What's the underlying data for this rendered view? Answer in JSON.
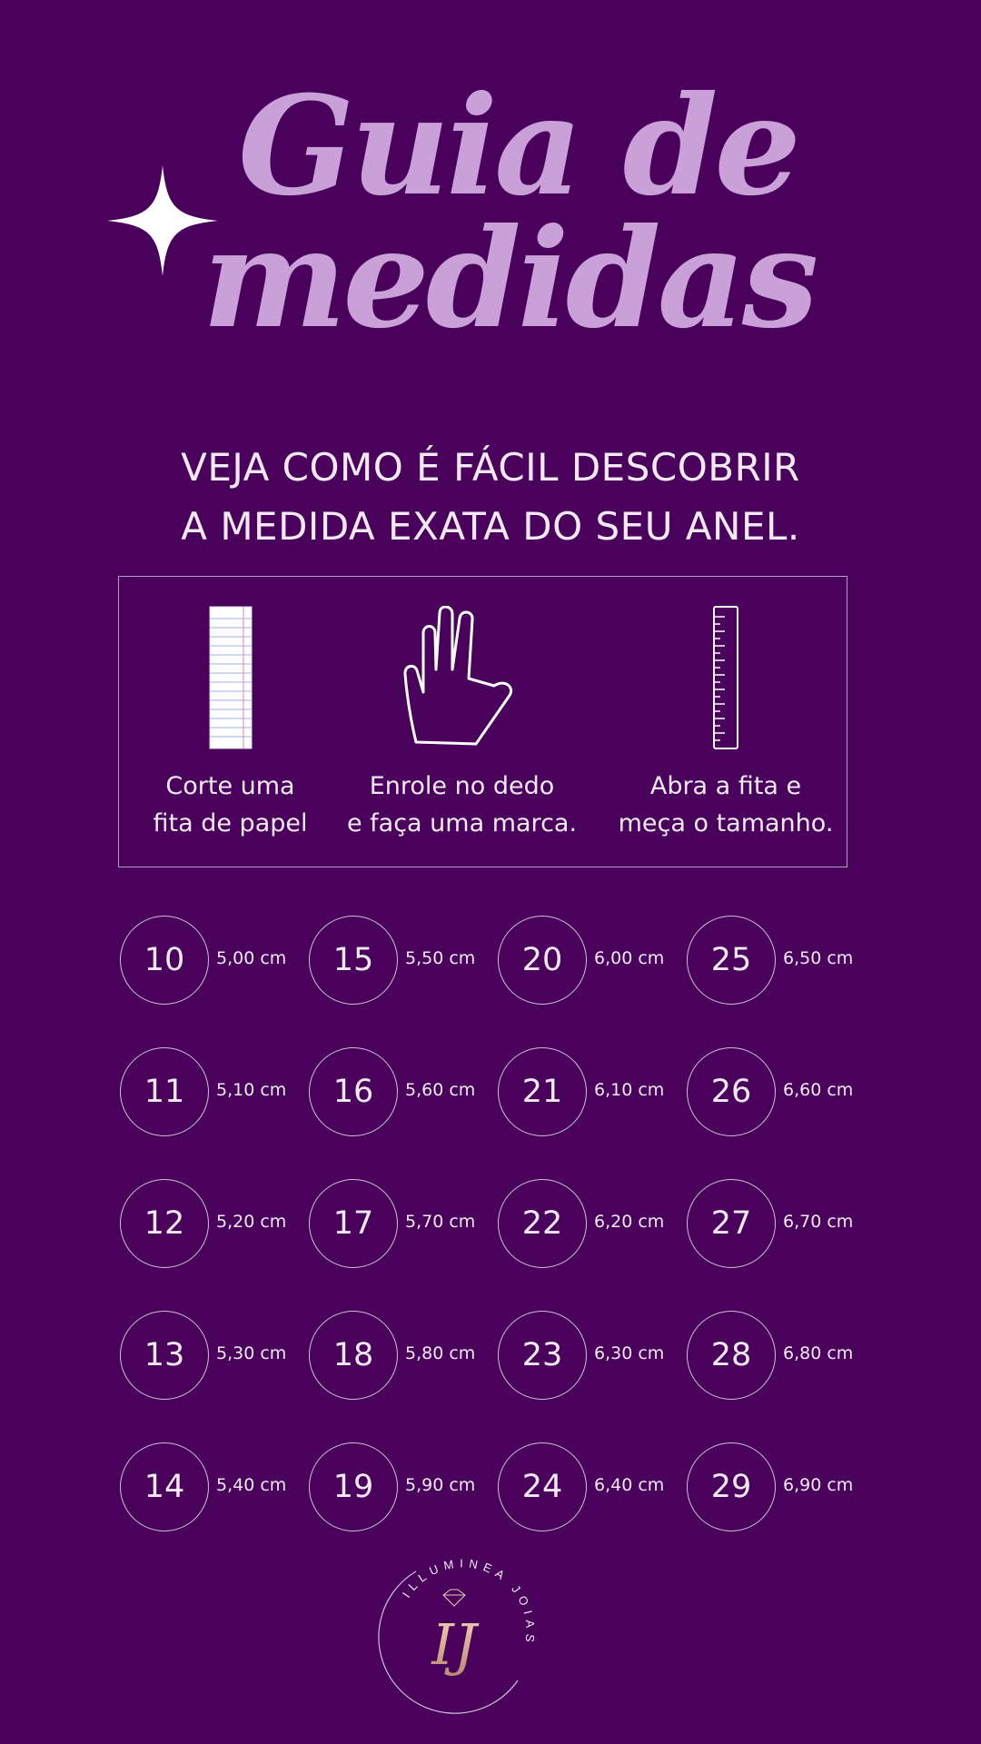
{
  "title": {
    "line1": "Guia de",
    "line2": "medidas"
  },
  "subtitle": {
    "line1": "VEJA COMO É FÁCIL DESCOBRIR",
    "line2": "A MEDIDA EXATA DO SEU ANEL."
  },
  "steps": [
    {
      "icon": "paper-strip-icon",
      "line1": "Corte uma",
      "line2": "fita de papel"
    },
    {
      "icon": "hand-icon",
      "line1": "Enrole no dedo",
      "line2": "e faça uma marca."
    },
    {
      "icon": "ruler-icon",
      "line1": "Abra a fita e",
      "line2": "meça o tamanho."
    }
  ],
  "sizes": [
    [
      {
        "size": "10",
        "cm": "5,00 cm"
      },
      {
        "size": "11",
        "cm": "5,10 cm"
      },
      {
        "size": "12",
        "cm": "5,20 cm"
      },
      {
        "size": "13",
        "cm": "5,30 cm"
      },
      {
        "size": "14",
        "cm": "5,40 cm"
      }
    ],
    [
      {
        "size": "15",
        "cm": "5,50 cm"
      },
      {
        "size": "16",
        "cm": "5,60 cm"
      },
      {
        "size": "17",
        "cm": "5,70 cm"
      },
      {
        "size": "18",
        "cm": "5,80 cm"
      },
      {
        "size": "19",
        "cm": "5,90 cm"
      }
    ],
    [
      {
        "size": "20",
        "cm": "6,00 cm"
      },
      {
        "size": "21",
        "cm": "6,10 cm"
      },
      {
        "size": "22",
        "cm": "6,20 cm"
      },
      {
        "size": "23",
        "cm": "6,30 cm"
      },
      {
        "size": "24",
        "cm": "6,40 cm"
      }
    ],
    [
      {
        "size": "25",
        "cm": "6,50 cm"
      },
      {
        "size": "26",
        "cm": "6,60 cm"
      },
      {
        "size": "27",
        "cm": "6,70 cm"
      },
      {
        "size": "28",
        "cm": "6,80 cm"
      },
      {
        "size": "29",
        "cm": "6,90 cm"
      }
    ]
  ],
  "logo": {
    "brand_text": "ILLUMINEA JOIAS",
    "monogram": "IJ"
  },
  "colors": {
    "background": "#4a015c",
    "title": "#c9a0d8",
    "text": "#f3eaf6",
    "outline": "#cfc0da"
  }
}
